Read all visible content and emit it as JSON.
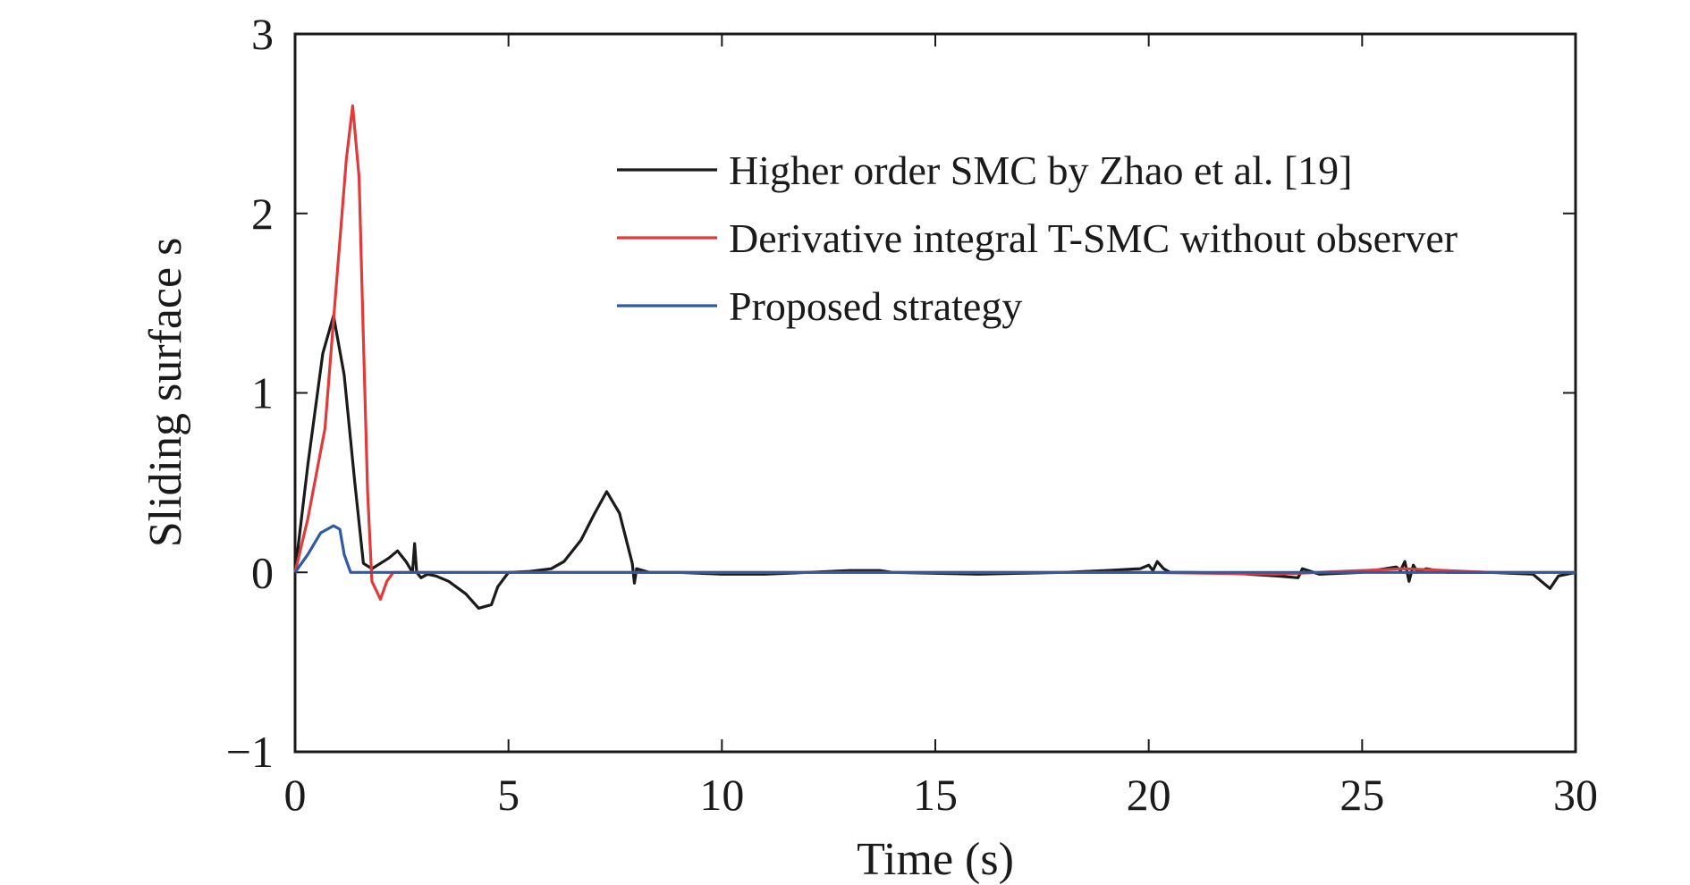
{
  "chart_data": {
    "type": "line",
    "title": "",
    "xlabel": "Time (s)",
    "ylabel": "Sliding surface s",
    "xlim": [
      0,
      30
    ],
    "ylim": [
      -1,
      3
    ],
    "xticks": [
      "0",
      "5",
      "10",
      "15",
      "20",
      "25",
      "30"
    ],
    "yticks": [
      "−1",
      "0",
      "1",
      "2",
      "3"
    ],
    "grid": false,
    "legend_position": "top-right",
    "series": [
      {
        "name": "Higher order SMC by Zhao et al. [19]",
        "color": "#1a1a1a",
        "x": [
          0,
          0.3,
          0.65,
          0.9,
          1.15,
          1.4,
          1.6,
          1.8,
          2.0,
          2.2,
          2.4,
          2.6,
          2.75,
          2.8,
          2.85,
          2.95,
          3.1,
          3.3,
          3.6,
          4.0,
          4.3,
          4.6,
          4.75,
          5.0,
          5.5,
          6.0,
          6.3,
          6.7,
          7.0,
          7.3,
          7.6,
          7.9,
          7.95,
          8.0,
          8.3,
          9.0,
          10.0,
          11.0,
          12.0,
          13.0,
          13.7,
          14.0,
          15.0,
          16.0,
          17.0,
          18.0,
          19.0,
          19.8,
          20.0,
          20.1,
          20.2,
          20.35,
          20.5,
          21.0,
          22.0,
          23.0,
          23.5,
          23.6,
          24.0,
          25.0,
          25.8,
          25.9,
          26.0,
          26.1,
          26.2,
          26.3,
          26.5,
          27.0,
          28.0,
          29.0,
          29.2,
          29.4,
          29.6,
          29.8,
          30.0
        ],
        "y": [
          0,
          0.6,
          1.22,
          1.43,
          1.1,
          0.5,
          0.05,
          0.02,
          0.05,
          0.08,
          0.12,
          0.06,
          0.0,
          0.16,
          0.0,
          -0.03,
          -0.01,
          -0.02,
          -0.05,
          -0.12,
          -0.2,
          -0.18,
          -0.08,
          0.0,
          0.005,
          0.02,
          0.06,
          0.18,
          0.32,
          0.45,
          0.33,
          0.05,
          -0.06,
          0.02,
          0.0,
          0.0,
          -0.01,
          -0.01,
          0.0,
          0.01,
          0.01,
          0.0,
          -0.005,
          -0.01,
          -0.005,
          0.0,
          0.01,
          0.02,
          0.04,
          0.01,
          0.06,
          0.02,
          0.0,
          0.0,
          -0.005,
          -0.02,
          -0.03,
          0.02,
          -0.01,
          0.0,
          0.03,
          0.01,
          0.06,
          -0.05,
          0.04,
          0.0,
          0.02,
          0.0,
          0.0,
          -0.01,
          -0.05,
          -0.09,
          -0.02,
          -0.01,
          0.0
        ]
      },
      {
        "name": "Derivative integral T-SMC without observer",
        "color": "#e03a3a",
        "x": [
          0,
          0.3,
          0.7,
          1.0,
          1.2,
          1.35,
          1.5,
          1.6,
          1.7,
          1.8,
          1.9,
          2.0,
          2.15,
          2.3,
          2.6,
          3.0,
          5.0,
          10.0,
          15.0,
          20.0,
          23.0,
          26.0,
          28.0,
          30.0
        ],
        "y": [
          0,
          0.3,
          0.8,
          1.7,
          2.3,
          2.6,
          2.2,
          1.3,
          0.45,
          -0.05,
          -0.1,
          -0.15,
          -0.05,
          0.0,
          0.0,
          0.0,
          0.0,
          0.0,
          0.0,
          0.0,
          -0.01,
          0.02,
          0.0,
          0.0
        ]
      },
      {
        "name": "Proposed strategy",
        "color": "#2f5aa8",
        "x": [
          0,
          0.3,
          0.6,
          0.9,
          1.05,
          1.15,
          1.3,
          2.0,
          5.0,
          10.0,
          15.0,
          20.0,
          25.0,
          30.0
        ],
        "y": [
          0,
          0.1,
          0.22,
          0.26,
          0.24,
          0.1,
          0.0,
          0.0,
          0.0,
          0.0,
          0.0,
          0.0,
          0.0,
          0.0
        ]
      }
    ]
  }
}
